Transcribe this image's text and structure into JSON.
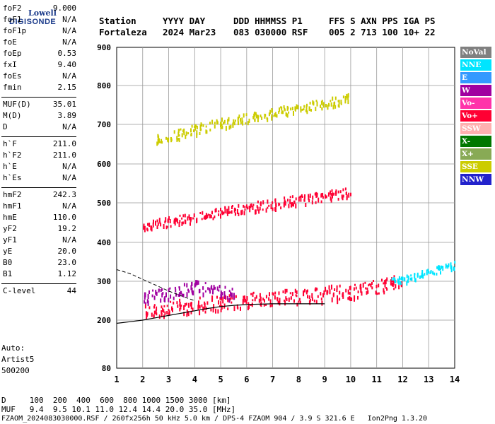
{
  "logo": {
    "line1": "Lowell",
    "line2": "DIGISONDE"
  },
  "header": {
    "line1": [
      "Station",
      "YYYY DAY",
      "DDD HHMMSS P1",
      "FFS S AXN PPS IGA PS"
    ],
    "line2": [
      "Fortaleza",
      "2024 Mar23",
      "083 030000 RSF",
      "005 2 713 100 10+ 22"
    ]
  },
  "params": [
    {
      "k": "foF2",
      "v": "9.000"
    },
    {
      "k": "foF1",
      "v": "N/A"
    },
    {
      "k": "foF1p",
      "v": "N/A"
    },
    {
      "k": "foE",
      "v": "N/A"
    },
    {
      "k": "foEp",
      "v": "0.53"
    },
    {
      "k": "fxI",
      "v": "9.40"
    },
    {
      "k": "foEs",
      "v": "N/A"
    },
    {
      "k": "fmin",
      "v": "2.15"
    },
    {
      "k": "MUF(D)",
      "v": "35.01"
    },
    {
      "k": "M(D)",
      "v": "3.89"
    },
    {
      "k": "D",
      "v": "N/A"
    },
    {
      "k": "h`F",
      "v": "211.0"
    },
    {
      "k": "h`F2",
      "v": "211.0"
    },
    {
      "k": "h`E",
      "v": "N/A"
    },
    {
      "k": "h`Es",
      "v": "N/A"
    },
    {
      "k": "hmF2",
      "v": "242.3"
    },
    {
      "k": "hmF1",
      "v": "N/A"
    },
    {
      "k": "hmE",
      "v": "110.0"
    },
    {
      "k": "yF2",
      "v": "19.2"
    },
    {
      "k": "yF1",
      "v": "N/A"
    },
    {
      "k": "yE",
      "v": "20.0"
    },
    {
      "k": "B0",
      "v": "23.0"
    },
    {
      "k": "B1",
      "v": "1.12"
    },
    {
      "k": "C-level",
      "v": "44"
    }
  ],
  "auto": [
    "Auto:",
    "Artist5",
    "500200"
  ],
  "legend": [
    {
      "label": "NoVal",
      "bg": "#808080",
      "fg": "#ffffff"
    },
    {
      "label": "NNE",
      "bg": "#00e5ff",
      "fg": "#ffffff"
    },
    {
      "label": "E",
      "bg": "#3399ff",
      "fg": "#ffffff"
    },
    {
      "label": "W",
      "bg": "#a000a0",
      "fg": "#ffffff"
    },
    {
      "label": "Vo-",
      "bg": "#ff33aa",
      "fg": "#ffffff"
    },
    {
      "label": "Vo+",
      "bg": "#ff0033",
      "fg": "#ffffff"
    },
    {
      "label": "SSW",
      "bg": "#ffb0b0",
      "fg": "#ffffff"
    },
    {
      "label": "X-",
      "bg": "#007700",
      "fg": "#ffffff"
    },
    {
      "label": "X+",
      "bg": "#88aa55",
      "fg": "#ffffff"
    },
    {
      "label": "SSE",
      "bg": "#cccc00",
      "fg": "#ffffff"
    },
    {
      "label": "NNW",
      "bg": "#2222cc",
      "fg": "#ffffff"
    }
  ],
  "footer": {
    "d_row": "D     100  200  400  600  800 1000 1500 3000 [km]",
    "muf_row": "MUF   9.4  9.5 10.1 11.0 12.4 14.4 20.0 35.0 [MHz]",
    "file_row": "FZAOM_2024083030000.RSF / 260fx256h 50 kHz 5.0 km / DPS-4 FZAOM 904 / 3.9 S 321.6 E   Ion2Png 1.3.20"
  },
  "chart_data": {
    "type": "scatter",
    "xlim": [
      1,
      14
    ],
    "ylim": [
      80,
      900
    ],
    "x_ticks": [
      1,
      2,
      3,
      4,
      5,
      6,
      7,
      8,
      9,
      10,
      11,
      12,
      13,
      14
    ],
    "y_ticks": [
      80,
      200,
      300,
      400,
      500,
      600,
      700,
      800,
      900
    ],
    "grid": true,
    "legend_placement": "right",
    "traces": [
      {
        "name": "F2 O-trace",
        "color": "#ff0033",
        "band": 40,
        "x": [
          2.0,
          2.5,
          3.0,
          3.5,
          4.0,
          4.5,
          5.0,
          5.5,
          6.0,
          6.5,
          7.0,
          7.5,
          8.0,
          8.5,
          9.0,
          9.5,
          10.0,
          10.5,
          11.0,
          11.5,
          12.0
        ],
        "y": [
          225,
          228,
          232,
          236,
          240,
          244,
          248,
          252,
          255,
          258,
          260,
          262,
          264,
          266,
          270,
          274,
          278,
          283,
          290,
          298,
          305
        ]
      },
      {
        "name": "F2 2-hop",
        "color": "#ff0033",
        "band": 25,
        "x": [
          2.0,
          2.5,
          3.0,
          3.5,
          4.0,
          4.5,
          5.0,
          5.5,
          6.0,
          6.5,
          7.0,
          7.5,
          8.0,
          8.5,
          9.0,
          9.5,
          10.0
        ],
        "y": [
          440,
          448,
          455,
          460,
          465,
          472,
          478,
          485,
          490,
          496,
          500,
          505,
          510,
          515,
          520,
          525,
          530
        ]
      },
      {
        "name": "F2 3-hop",
        "color": "#cccc00",
        "band": 25,
        "x": [
          2.5,
          3.0,
          3.5,
          4.0,
          4.5,
          5.0,
          5.5,
          6.0,
          6.5,
          7.0,
          7.5,
          8.0,
          8.5,
          9.0,
          9.5,
          10.0
        ],
        "y": [
          665,
          672,
          680,
          690,
          698,
          705,
          712,
          718,
          725,
          732,
          738,
          745,
          750,
          756,
          762,
          770
        ]
      },
      {
        "name": "W trace",
        "color": "#a000a0",
        "band": 30,
        "x": [
          2.0,
          2.5,
          3.0,
          3.5,
          4.0,
          4.5,
          5.0,
          5.5
        ],
        "y": [
          260,
          266,
          272,
          280,
          290,
          282,
          276,
          270
        ]
      },
      {
        "name": "NNE high",
        "color": "#00e5ff",
        "band": 20,
        "x": [
          11.5,
          12.0,
          12.5,
          13.0,
          13.5,
          14.0
        ],
        "y": [
          300,
          305,
          315,
          325,
          335,
          345
        ]
      }
    ],
    "profile_curve": {
      "x": [
        1.0,
        1.5,
        2.0,
        2.5,
        3.0,
        3.5,
        4.0,
        4.5,
        5.0,
        5.5,
        6.0,
        6.5,
        7.0,
        7.5,
        8.0,
        8.5,
        9.0
      ],
      "y": [
        192,
        196,
        200,
        206,
        212,
        218,
        224,
        230,
        235,
        238,
        240,
        241,
        242,
        242,
        242,
        242,
        242
      ]
    },
    "dashed_curve": {
      "x": [
        1.0,
        1.5,
        2.0,
        2.5,
        3.0,
        3.5,
        4.0
      ],
      "y": [
        330,
        320,
        305,
        290,
        275,
        262,
        250
      ]
    }
  }
}
